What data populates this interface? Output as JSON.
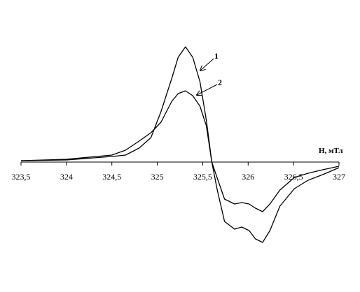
{
  "chart_data": {
    "type": "line",
    "x_label": "H, мТл",
    "x": [
      323.5,
      324.0,
      324.5,
      324.65,
      324.8,
      324.93,
      325.04,
      325.16,
      325.23,
      325.31,
      325.39,
      325.47,
      325.54,
      325.6,
      325.66,
      325.74,
      325.85,
      325.93,
      326.01,
      326.08,
      326.16,
      326.24,
      326.35,
      326.51,
      326.66,
      326.82,
      327.0
    ],
    "series": [
      {
        "label": "1",
        "color": "#000000",
        "values": [
          0.02,
          0.03,
          0.08,
          0.1,
          0.2,
          0.35,
          0.72,
          1.2,
          1.5,
          1.65,
          1.5,
          1.15,
          0.6,
          0,
          -0.4,
          -0.85,
          -0.96,
          -0.93,
          -0.98,
          -1.1,
          -1.15,
          -0.98,
          -0.63,
          -0.38,
          -0.26,
          -0.18,
          -0.08
        ]
      },
      {
        "label": "2",
        "color": "#000000",
        "values": [
          0.02,
          0.04,
          0.1,
          0.17,
          0.3,
          0.42,
          0.57,
          0.87,
          0.98,
          1.02,
          0.95,
          0.8,
          0.52,
          0,
          -0.23,
          -0.53,
          -0.6,
          -0.58,
          -0.6,
          -0.66,
          -0.71,
          -0.6,
          -0.4,
          -0.22,
          -0.16,
          -0.11,
          -0.06
        ]
      }
    ],
    "xlim": [
      323.5,
      327
    ],
    "ylim": [
      -1.5,
      2
    ],
    "xticks": [
      {
        "value": 323.5,
        "label": "323,5"
      },
      324,
      {
        "value": 324.5,
        "label": "324,5"
      },
      325,
      {
        "value": 325.5,
        "label": "325,5"
      },
      326,
      {
        "value": 326.5,
        "label": "326,5"
      },
      327
    ]
  }
}
